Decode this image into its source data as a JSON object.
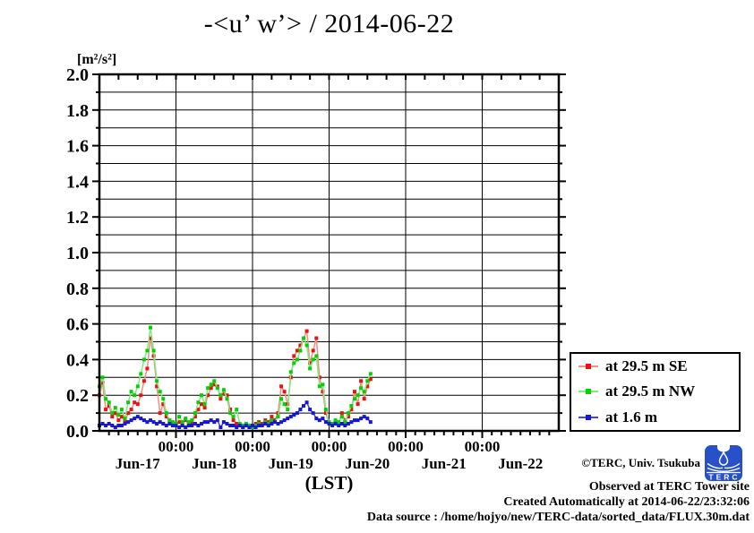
{
  "chart_data": {
    "type": "line",
    "title": "-<u’ w’> / 2014-06-22",
    "x_axis": {
      "label": "(LST)",
      "day_labels": [
        "Jun-17",
        "Jun-18",
        "Jun-19",
        "Jun-20",
        "Jun-21",
        "Jun-22"
      ],
      "midnight_tick_label": "00:00",
      "range_days": 6,
      "minor_tick_hours": 3
    },
    "y_axis": {
      "unit_label": "[m²/s²]",
      "min": 0.0,
      "max": 2.0,
      "major_tick_step": 0.2,
      "grid_step": 0.1
    },
    "grid": true,
    "legend_position": "outside-right-bottom",
    "series": [
      {
        "name": "at 29.5 m SE",
        "point_color": "#ee1010",
        "line_color": "#f09080",
        "start_hour": 0,
        "step_hours": 1,
        "values": [
          0.2,
          0.27,
          0.12,
          0.14,
          0.08,
          0.1,
          0.06,
          0.08,
          0.05,
          0.1,
          0.12,
          0.16,
          0.15,
          0.2,
          0.28,
          0.35,
          0.52,
          0.42,
          0.25,
          0.1,
          0.15,
          0.08,
          0.05,
          0.04,
          0.03,
          0.05,
          0.04,
          0.06,
          0.04,
          0.05,
          0.08,
          0.12,
          0.15,
          0.13,
          0.2,
          0.24,
          0.26,
          0.25,
          0.18,
          0.21,
          0.2,
          0.12,
          0.06,
          0.04,
          0.03,
          0.02,
          0.03,
          0.02,
          0.03,
          0.04,
          0.05,
          0.04,
          0.06,
          0.05,
          0.08,
          0.06,
          0.1,
          0.25,
          0.22,
          0.15,
          0.3,
          0.42,
          0.45,
          0.48,
          0.52,
          0.56,
          0.38,
          0.45,
          0.52,
          0.3,
          0.22,
          0.1,
          0.04,
          0.03,
          0.05,
          0.04,
          0.1,
          0.06,
          0.08,
          0.12,
          0.22,
          0.15,
          0.28,
          0.18,
          0.25,
          0.29
        ]
      },
      {
        "name": "at 29.5 m NW",
        "point_color": "#00d400",
        "line_color": "#84e884",
        "start_hour": 0,
        "step_hours": 1,
        "values": [
          0.25,
          0.3,
          0.18,
          0.16,
          0.1,
          0.13,
          0.09,
          0.12,
          0.07,
          0.16,
          0.22,
          0.2,
          0.25,
          0.32,
          0.4,
          0.45,
          0.58,
          0.45,
          0.28,
          0.22,
          0.18,
          0.1,
          0.06,
          0.05,
          0.04,
          0.08,
          0.05,
          0.07,
          0.05,
          0.06,
          0.1,
          0.16,
          0.2,
          0.15,
          0.24,
          0.26,
          0.28,
          0.24,
          0.2,
          0.23,
          0.18,
          0.1,
          0.08,
          0.12,
          0.04,
          0.03,
          0.04,
          0.03,
          0.02,
          0.03,
          0.04,
          0.03,
          0.05,
          0.04,
          0.06,
          0.05,
          0.08,
          0.18,
          0.15,
          0.12,
          0.33,
          0.38,
          0.4,
          0.45,
          0.52,
          0.48,
          0.35,
          0.4,
          0.42,
          0.25,
          0.26,
          0.12,
          0.05,
          0.04,
          0.06,
          0.05,
          0.08,
          0.05,
          0.1,
          0.14,
          0.18,
          0.2,
          0.24,
          0.22,
          0.28,
          0.32
        ]
      },
      {
        "name": "at 1.6 m",
        "point_color": "#1515dd",
        "line_color": "#4444ee",
        "start_hour": 0,
        "step_hours": 1,
        "values": [
          0.03,
          0.04,
          0.03,
          0.04,
          0.03,
          0.02,
          0.03,
          0.03,
          0.04,
          0.05,
          0.06,
          0.07,
          0.08,
          0.07,
          0.06,
          0.05,
          0.06,
          0.05,
          0.04,
          0.05,
          0.04,
          0.03,
          0.04,
          0.03,
          0.03,
          0.02,
          0.03,
          0.02,
          0.03,
          0.03,
          0.04,
          0.03,
          0.04,
          0.05,
          0.05,
          0.06,
          0.05,
          0.06,
          0.02,
          0.05,
          0.04,
          0.03,
          0.03,
          0.02,
          0.03,
          0.02,
          0.03,
          0.02,
          0.03,
          0.02,
          0.03,
          0.03,
          0.04,
          0.03,
          0.04,
          0.05,
          0.04,
          0.05,
          0.06,
          0.07,
          0.08,
          0.09,
          0.1,
          0.12,
          0.14,
          0.16,
          0.12,
          0.1,
          0.07,
          0.06,
          0.07,
          0.05,
          0.04,
          0.03,
          0.04,
          0.03,
          0.04,
          0.03,
          0.04,
          0.05,
          0.06,
          0.06,
          0.07,
          0.08,
          0.07,
          0.05
        ]
      }
    ]
  },
  "footer": {
    "copyright": "©TERC, Univ. Tsukuba",
    "observed": "Observed at TERC Tower site",
    "created": "Created Automatically at 2014-06-22/23:32:06",
    "data_source": "Data source : /home/hojyo/new/TERC-data/sorted_data/FLUX.30m.dat",
    "logo_text": "TERC"
  }
}
